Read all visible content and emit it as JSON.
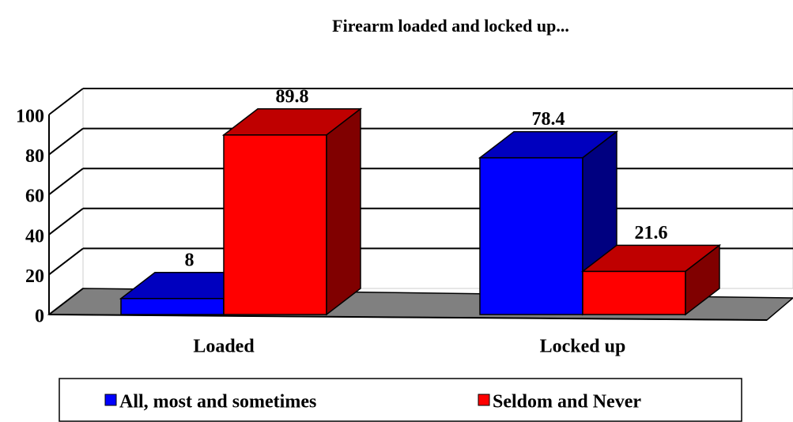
{
  "chart_data": {
    "type": "bar3d",
    "title": "Firearm loaded and locked up...",
    "categories": [
      "Loaded",
      "Locked up"
    ],
    "series": [
      {
        "name": "All, most and sometimes",
        "color": "#0000ff",
        "values": [
          8,
          78.4
        ]
      },
      {
        "name": "Seldom and Never",
        "color": "#ff0000",
        "values": [
          89.8,
          21.6
        ]
      }
    ],
    "ylim": [
      0,
      100
    ],
    "yticks": [
      0,
      20,
      40,
      60,
      80,
      100
    ],
    "grid": true,
    "legend": "bottom"
  }
}
